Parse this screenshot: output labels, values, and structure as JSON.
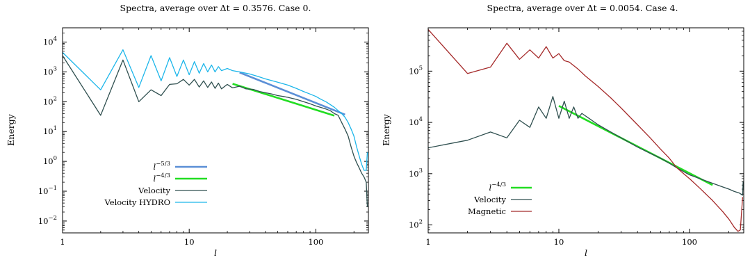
{
  "chart_data": [
    {
      "type": "line",
      "title": "Spectra, average over Δt = 0.3576. Case 0.",
      "xlabel": "l",
      "ylabel": "Energy",
      "x_scale": "log",
      "y_scale": "log",
      "xlim": [
        1,
        260
      ],
      "ylim": [
        0.004,
        30000
      ],
      "grid": false,
      "legend_position": "bottom-left",
      "x_ticks": [
        {
          "v": 1,
          "label": "1"
        },
        {
          "v": 10,
          "label": "10"
        },
        {
          "v": 100,
          "label": "100"
        }
      ],
      "y_ticks": [
        {
          "v": 0.01,
          "base": "10",
          "exp": "−2"
        },
        {
          "v": 0.1,
          "base": "10",
          "exp": "−1"
        },
        {
          "v": 1,
          "base": "10",
          "exp": "0"
        },
        {
          "v": 10,
          "base": "10",
          "exp": "1"
        },
        {
          "v": 100,
          "base": "10",
          "exp": "2"
        },
        {
          "v": 1000,
          "base": "10",
          "exp": "3"
        },
        {
          "v": 10000,
          "base": "10",
          "exp": "4"
        }
      ],
      "series": [
        {
          "name": "l^-5/3",
          "label_base": "l",
          "label_exp": "−5/3",
          "color": "#5b8fd6",
          "width": 2.6,
          "points": [
            [
              25,
              950
            ],
            [
              170,
              37
            ]
          ]
        },
        {
          "name": "l^-4/3",
          "label_base": "l",
          "label_exp": "−4/3",
          "color": "#22dd22",
          "width": 2.6,
          "points": [
            [
              22,
              400
            ],
            [
              140,
              34
            ]
          ]
        },
        {
          "name": "Velocity",
          "color": "#2f4f4f",
          "width": 1.3,
          "points": [
            [
              1,
              3500
            ],
            [
              2,
              35
            ],
            [
              3,
              2500
            ],
            [
              4,
              100
            ],
            [
              5,
              250
            ],
            [
              6,
              160
            ],
            [
              7,
              380
            ],
            [
              8,
              400
            ],
            [
              9,
              560
            ],
            [
              10,
              360
            ],
            [
              11,
              560
            ],
            [
              12,
              310
            ],
            [
              13,
              500
            ],
            [
              14,
              300
            ],
            [
              15,
              460
            ],
            [
              16,
              280
            ],
            [
              17,
              420
            ],
            [
              18,
              270
            ],
            [
              20,
              380
            ],
            [
              22,
              290
            ],
            [
              25,
              330
            ],
            [
              28,
              270
            ],
            [
              32,
              260
            ],
            [
              36,
              220
            ],
            [
              40,
              200
            ],
            [
              45,
              180
            ],
            [
              50,
              160
            ],
            [
              55,
              150
            ],
            [
              60,
              140
            ],
            [
              70,
              120
            ],
            [
              80,
              100
            ],
            [
              90,
              85
            ],
            [
              100,
              72
            ],
            [
              110,
              64
            ],
            [
              120,
              57
            ],
            [
              130,
              50
            ],
            [
              140,
              40
            ],
            [
              150,
              35
            ],
            [
              160,
              20
            ],
            [
              170,
              12
            ],
            [
              180,
              7
            ],
            [
              190,
              3
            ],
            [
              200,
              1.5
            ],
            [
              210,
              0.9
            ],
            [
              220,
              0.6
            ],
            [
              230,
              0.4
            ],
            [
              240,
              0.3
            ],
            [
              250,
              0.2
            ],
            [
              255,
              0.03
            ]
          ]
        },
        {
          "name": "Velocity HYDRO",
          "color": "#1cb6ea",
          "width": 1.3,
          "points": [
            [
              1,
              4500
            ],
            [
              2,
              250
            ],
            [
              3,
              5500
            ],
            [
              4,
              300
            ],
            [
              5,
              3500
            ],
            [
              6,
              500
            ],
            [
              7,
              3000
            ],
            [
              8,
              700
            ],
            [
              9,
              2500
            ],
            [
              10,
              800
            ],
            [
              11,
              2200
            ],
            [
              12,
              900
            ],
            [
              13,
              1900
            ],
            [
              14,
              1000
            ],
            [
              15,
              1700
            ],
            [
              16,
              1000
            ],
            [
              17,
              1500
            ],
            [
              18,
              1100
            ],
            [
              20,
              1300
            ],
            [
              22,
              1100
            ],
            [
              25,
              1000
            ],
            [
              30,
              850
            ],
            [
              35,
              700
            ],
            [
              40,
              580
            ],
            [
              50,
              450
            ],
            [
              60,
              360
            ],
            [
              70,
              280
            ],
            [
              80,
              220
            ],
            [
              90,
              180
            ],
            [
              100,
              150
            ],
            [
              110,
              120
            ],
            [
              120,
              100
            ],
            [
              130,
              80
            ],
            [
              140,
              65
            ],
            [
              150,
              50
            ],
            [
              160,
              40
            ],
            [
              170,
              30
            ],
            [
              180,
              20
            ],
            [
              190,
              12
            ],
            [
              200,
              7
            ],
            [
              210,
              3
            ],
            [
              220,
              1.5
            ],
            [
              230,
              0.8
            ],
            [
              240,
              0.5
            ],
            [
              250,
              0.5
            ],
            [
              255,
              2
            ]
          ]
        }
      ]
    },
    {
      "type": "line",
      "title": "Spectra, average over Δt = 0.0054. Case 4.",
      "xlabel": "l",
      "ylabel": "Energy",
      "x_scale": "log",
      "y_scale": "log",
      "xlim": [
        1,
        260
      ],
      "ylim": [
        70,
        700000
      ],
      "grid": false,
      "legend_position": "bottom-left",
      "x_ticks": [
        {
          "v": 1,
          "label": "1"
        },
        {
          "v": 10,
          "label": "10"
        },
        {
          "v": 100,
          "label": "100"
        }
      ],
      "y_ticks": [
        {
          "v": 100,
          "base": "10",
          "exp": "2"
        },
        {
          "v": 1000,
          "base": "10",
          "exp": "3"
        },
        {
          "v": 10000,
          "base": "10",
          "exp": "4"
        },
        {
          "v": 100000,
          "base": "10",
          "exp": "5"
        }
      ],
      "series": [
        {
          "name": "l^-4/3",
          "label_base": "l",
          "label_exp": "−4/3",
          "color": "#22dd22",
          "width": 2.6,
          "points": [
            [
              10,
              21000
            ],
            [
              150,
              600
            ]
          ]
        },
        {
          "name": "Velocity",
          "color": "#2f4f4f",
          "width": 1.3,
          "points": [
            [
              1,
              3200
            ],
            [
              2,
              4500
            ],
            [
              3,
              6500
            ],
            [
              4,
              5000
            ],
            [
              5,
              11000
            ],
            [
              6,
              8000
            ],
            [
              7,
              20000
            ],
            [
              8,
              12000
            ],
            [
              9,
              32000
            ],
            [
              10,
              12000
            ],
            [
              11,
              26000
            ],
            [
              12,
              12000
            ],
            [
              13,
              20000
            ],
            [
              14,
              12000
            ],
            [
              15,
              15000
            ],
            [
              17,
              12000
            ],
            [
              20,
              9000
            ],
            [
              25,
              6500
            ],
            [
              30,
              5000
            ],
            [
              40,
              3300
            ],
            [
              50,
              2500
            ],
            [
              60,
              2000
            ],
            [
              70,
              1600
            ],
            [
              80,
              1300
            ],
            [
              90,
              1100
            ],
            [
              100,
              950
            ],
            [
              120,
              800
            ],
            [
              150,
              650
            ],
            [
              180,
              550
            ],
            [
              200,
              500
            ],
            [
              220,
              450
            ],
            [
              240,
              420
            ],
            [
              255,
              380
            ],
            [
              257,
              700
            ]
          ]
        },
        {
          "name": "Magnetic",
          "color": "#a52a2a",
          "width": 1.3,
          "points": [
            [
              1,
              650000
            ],
            [
              2,
              90000
            ],
            [
              3,
              120000
            ],
            [
              4,
              350000
            ],
            [
              5,
              170000
            ],
            [
              6,
              260000
            ],
            [
              7,
              180000
            ],
            [
              8,
              300000
            ],
            [
              9,
              180000
            ],
            [
              10,
              220000
            ],
            [
              11,
              160000
            ],
            [
              12,
              150000
            ],
            [
              14,
              110000
            ],
            [
              16,
              80000
            ],
            [
              20,
              50000
            ],
            [
              25,
              30000
            ],
            [
              30,
              19000
            ],
            [
              40,
              9000
            ],
            [
              50,
              5000
            ],
            [
              60,
              3000
            ],
            [
              70,
              2000
            ],
            [
              80,
              1300
            ],
            [
              90,
              1000
            ],
            [
              100,
              800
            ],
            [
              120,
              520
            ],
            [
              150,
              300
            ],
            [
              180,
              180
            ],
            [
              200,
              130
            ],
            [
              220,
              90
            ],
            [
              235,
              75
            ],
            [
              245,
              80
            ],
            [
              255,
              350
            ]
          ]
        }
      ]
    }
  ]
}
